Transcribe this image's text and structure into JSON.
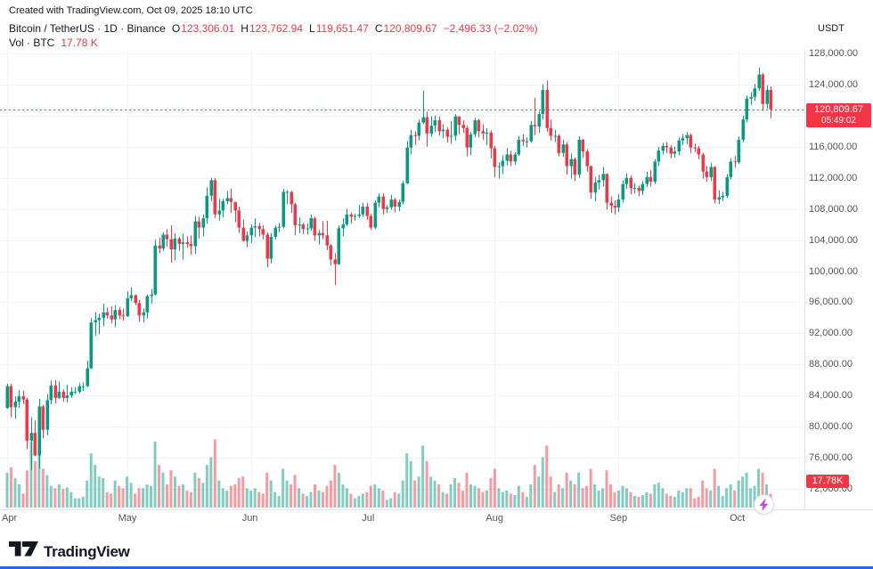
{
  "attribution": "Created with TradingView.com, Oct 09, 2025 18:10 UTC",
  "legend": {
    "title": "Bitcoin / TetherUS · 1D · Binance",
    "o_label": "O",
    "o_value": "123,306.01",
    "h_label": "H",
    "h_value": "123,762.94",
    "l_label": "L",
    "l_value": "119,651.47",
    "c_label": "C",
    "c_value": "120,809.67",
    "change": "−2,496.33 (−2.02%)",
    "currency": "USDT",
    "vol_label": "Vol · BTC",
    "vol_value": "17.78 K"
  },
  "price_line": {
    "value": 120809.67,
    "label": "120,809.67",
    "countdown": "05:49:02"
  },
  "volume_badge": "17.78K",
  "price_axis": {
    "labels": [
      "128,000.00",
      "124,000.00",
      "120,000.00",
      "116,000.00",
      "112,000.00",
      "108,000.00",
      "104,000.00",
      "100,000.00",
      "96,000.00",
      "92,000.00",
      "88,000.00",
      "84,000.00",
      "80,000.00",
      "76,000.00",
      "72,000.00"
    ],
    "values": [
      128000,
      124000,
      120000,
      116000,
      112000,
      108000,
      104000,
      100000,
      96000,
      92000,
      88000,
      84000,
      80000,
      76000,
      72000
    ]
  },
  "time_axis": {
    "labels": [
      "Apr",
      "May",
      "Jun",
      "Jul",
      "Aug",
      "Sep",
      "Oct"
    ],
    "day_index": [
      0,
      30,
      61,
      91,
      122,
      153,
      183
    ]
  },
  "footer": {
    "brand": "TradingView"
  },
  "colors": {
    "up": "#089981",
    "down": "#f23645",
    "grid": "#f0f3fa",
    "axis_line": "#e0e3eb",
    "axis_text": "#50535e",
    "text": "#131722",
    "price_line": "#f23645",
    "badge_bg": "#f23645",
    "bolt": "#bb4fd0",
    "loading_bar": "#2962ff"
  },
  "chart_data": {
    "type": "candlestick+volume",
    "title": "Bitcoin / TetherUS 1D Binance",
    "symbol": "BTC/USDT",
    "exchange": "Binance",
    "interval": "1D",
    "start_date": "2025-04-01",
    "end_date": "2025-10-09",
    "price_scale": 1000,
    "price_unit": "USDT (candle values stored in thousands)",
    "volume_unit": "K BTC",
    "ylim": [
      69400,
      128600
    ],
    "y_tick_step": 4000,
    "grid": true,
    "legend_position": "top-left",
    "last_bar": {
      "open": 123306.01,
      "high": 123762.94,
      "low": 119651.47,
      "close": 120809.67,
      "volume_k": 17.78
    },
    "candles": [
      [
        82.4,
        85.5,
        82.3,
        85.2,
        45
      ],
      [
        85.2,
        85.5,
        81.2,
        82.5,
        52
      ],
      [
        82.5,
        83.9,
        81.0,
        83.2,
        38
      ],
      [
        83.2,
        84.7,
        82.4,
        83.9,
        30
      ],
      [
        83.9,
        84.6,
        82.9,
        83.5,
        18
      ],
      [
        83.5,
        83.7,
        77.1,
        78.2,
        48
      ],
      [
        78.2,
        81.2,
        74.4,
        79.2,
        85
      ],
      [
        79.2,
        80.8,
        76.2,
        76.3,
        60
      ],
      [
        76.3,
        83.6,
        74.6,
        82.6,
        78
      ],
      [
        82.6,
        82.8,
        78.5,
        79.6,
        50
      ],
      [
        79.6,
        84.2,
        78.9,
        83.4,
        42
      ],
      [
        83.4,
        85.9,
        82.9,
        85.3,
        28
      ],
      [
        85.3,
        86.0,
        83.0,
        83.7,
        25
      ],
      [
        83.7,
        85.8,
        83.6,
        84.5,
        30
      ],
      [
        84.5,
        84.8,
        83.2,
        83.7,
        24
      ],
      [
        83.7,
        85.4,
        83.1,
        84.0,
        26
      ],
      [
        84.0,
        85.1,
        83.7,
        84.5,
        20
      ],
      [
        84.5,
        85.1,
        84.2,
        84.5,
        12
      ],
      [
        84.5,
        85.6,
        84.3,
        85.2,
        12
      ],
      [
        85.2,
        85.7,
        84.6,
        85.2,
        14
      ],
      [
        85.2,
        88.5,
        85.1,
        87.5,
        35
      ],
      [
        87.5,
        94.0,
        87.4,
        93.4,
        70
      ],
      [
        93.4,
        94.7,
        91.7,
        93.7,
        55
      ],
      [
        93.7,
        94.5,
        91.9,
        94.0,
        40
      ],
      [
        94.0,
        95.8,
        92.9,
        94.7,
        38
      ],
      [
        94.7,
        95.3,
        93.9,
        94.3,
        20
      ],
      [
        94.3,
        95.5,
        93.3,
        93.8,
        18
      ],
      [
        93.8,
        95.6,
        92.8,
        95.0,
        35
      ],
      [
        95.0,
        95.4,
        93.8,
        94.3,
        28
      ],
      [
        94.3,
        95.2,
        93.6,
        94.2,
        25
      ],
      [
        94.2,
        97.4,
        94.1,
        96.5,
        40
      ],
      [
        96.5,
        97.9,
        96.1,
        96.9,
        32
      ],
      [
        96.9,
        97.0,
        95.6,
        95.9,
        18
      ],
      [
        95.9,
        96.3,
        93.5,
        94.3,
        25
      ],
      [
        94.3,
        95.2,
        93.4,
        94.7,
        25
      ],
      [
        94.7,
        97.0,
        93.9,
        96.8,
        30
      ],
      [
        96.8,
        97.7,
        95.8,
        97.0,
        28
      ],
      [
        97.0,
        104.1,
        96.9,
        103.3,
        85
      ],
      [
        103.3,
        104.3,
        102.3,
        102.9,
        55
      ],
      [
        102.9,
        105.0,
        102.6,
        104.7,
        45
      ],
      [
        104.7,
        105.4,
        103.1,
        104.1,
        30
      ],
      [
        104.1,
        105.9,
        101.1,
        102.8,
        48
      ],
      [
        102.8,
        104.9,
        101.4,
        104.2,
        40
      ],
      [
        104.2,
        104.4,
        102.6,
        103.5,
        28
      ],
      [
        103.5,
        104.8,
        101.5,
        103.7,
        30
      ],
      [
        103.7,
        104.5,
        103.0,
        103.5,
        22
      ],
      [
        103.5,
        104.6,
        102.1,
        103.2,
        20
      ],
      [
        103.2,
        107.1,
        102.2,
        106.4,
        45
      ],
      [
        106.4,
        107.0,
        104.2,
        105.6,
        38
      ],
      [
        105.6,
        107.3,
        104.5,
        106.8,
        32
      ],
      [
        106.8,
        110.8,
        106.1,
        109.7,
        55
      ],
      [
        109.7,
        112.0,
        109.0,
        111.7,
        65
      ],
      [
        111.7,
        112.0,
        106.8,
        107.3,
        88
      ],
      [
        107.3,
        109.3,
        106.5,
        107.8,
        35
      ],
      [
        107.8,
        109.3,
        106.9,
        109.0,
        25
      ],
      [
        109.0,
        110.3,
        108.6,
        109.4,
        22
      ],
      [
        109.4,
        110.6,
        107.5,
        108.9,
        28
      ],
      [
        108.9,
        108.9,
        106.3,
        107.8,
        30
      ],
      [
        107.8,
        108.3,
        104.9,
        105.6,
        38
      ],
      [
        105.6,
        106.6,
        103.8,
        103.9,
        40
      ],
      [
        103.9,
        105.1,
        103.1,
        104.6,
        25
      ],
      [
        104.6,
        106.0,
        103.6,
        105.6,
        22
      ],
      [
        105.6,
        106.8,
        104.4,
        105.8,
        25
      ],
      [
        105.8,
        106.2,
        104.5,
        105.4,
        20
      ],
      [
        105.4,
        105.9,
        104.1,
        104.7,
        18
      ],
      [
        104.7,
        105.0,
        100.5,
        101.6,
        45
      ],
      [
        101.6,
        104.9,
        101.0,
        104.4,
        35
      ],
      [
        104.4,
        105.9,
        104.1,
        105.6,
        20
      ],
      [
        105.6,
        106.2,
        105.0,
        105.7,
        15
      ],
      [
        105.7,
        110.6,
        105.5,
        110.2,
        50
      ],
      [
        110.2,
        110.4,
        108.6,
        110.2,
        35
      ],
      [
        110.2,
        110.3,
        107.5,
        108.6,
        30
      ],
      [
        108.6,
        108.8,
        104.6,
        105.9,
        42
      ],
      [
        105.9,
        106.9,
        104.9,
        106.0,
        25
      ],
      [
        106.0,
        106.2,
        104.8,
        105.4,
        18
      ],
      [
        105.4,
        106.1,
        104.7,
        105.5,
        15
      ],
      [
        105.5,
        107.3,
        105.2,
        106.8,
        20
      ],
      [
        106.8,
        107.0,
        103.9,
        104.6,
        30
      ],
      [
        104.6,
        105.3,
        103.4,
        104.9,
        22
      ],
      [
        104.9,
        106.4,
        104.1,
        104.6,
        20
      ],
      [
        104.6,
        106.5,
        102.7,
        103.3,
        28
      ],
      [
        103.3,
        103.5,
        100.7,
        101.5,
        35
      ],
      [
        101.5,
        102.3,
        98.2,
        100.9,
        55
      ],
      [
        100.9,
        105.9,
        100.8,
        105.5,
        45
      ],
      [
        105.5,
        106.8,
        104.5,
        106.0,
        30
      ],
      [
        106.0,
        108.0,
        105.8,
        107.3,
        25
      ],
      [
        107.3,
        107.5,
        106.1,
        107.0,
        18
      ],
      [
        107.0,
        107.4,
        106.5,
        107.1,
        12
      ],
      [
        107.1,
        108.5,
        106.8,
        107.3,
        15
      ],
      [
        107.3,
        108.8,
        107.0,
        108.3,
        18
      ],
      [
        108.3,
        108.8,
        106.6,
        107.1,
        20
      ],
      [
        107.1,
        107.4,
        105.3,
        105.6,
        28
      ],
      [
        105.6,
        109.1,
        105.4,
        108.8,
        30
      ],
      [
        108.8,
        110.0,
        108.2,
        109.6,
        25
      ],
      [
        109.6,
        110.0,
        107.3,
        108.0,
        22
      ],
      [
        108.0,
        108.5,
        107.5,
        108.2,
        10
      ],
      [
        108.2,
        109.8,
        107.9,
        109.2,
        12
      ],
      [
        109.2,
        109.4,
        107.6,
        108.3,
        20
      ],
      [
        108.3,
        109.2,
        107.7,
        108.9,
        18
      ],
      [
        108.9,
        111.6,
        108.6,
        111.3,
        35
      ],
      [
        111.3,
        116.7,
        111.2,
        115.9,
        70
      ],
      [
        115.9,
        118.2,
        115.0,
        117.5,
        60
      ],
      [
        117.5,
        118.0,
        116.2,
        117.4,
        35
      ],
      [
        117.4,
        119.5,
        116.8,
        119.1,
        40
      ],
      [
        119.1,
        123.2,
        118.9,
        119.8,
        80
      ],
      [
        119.8,
        120.5,
        116.0,
        117.7,
        60
      ],
      [
        117.7,
        119.9,
        117.3,
        118.7,
        40
      ],
      [
        118.7,
        120.0,
        117.9,
        119.4,
        35
      ],
      [
        119.4,
        119.9,
        117.4,
        118.0,
        30
      ],
      [
        118.0,
        118.9,
        117.1,
        118.2,
        20
      ],
      [
        118.2,
        118.5,
        116.5,
        117.3,
        18
      ],
      [
        117.3,
        119.3,
        116.4,
        117.4,
        30
      ],
      [
        117.4,
        120.2,
        116.8,
        119.9,
        38
      ],
      [
        119.9,
        119.9,
        117.6,
        118.8,
        32
      ],
      [
        118.8,
        119.4,
        117.8,
        118.4,
        22
      ],
      [
        118.4,
        118.7,
        114.8,
        115.9,
        45
      ],
      [
        115.9,
        117.9,
        114.9,
        117.6,
        30
      ],
      [
        117.6,
        119.7,
        117.2,
        119.4,
        28
      ],
      [
        119.4,
        119.6,
        117.2,
        118.0,
        25
      ],
      [
        118.0,
        118.9,
        116.9,
        117.7,
        20
      ],
      [
        117.7,
        118.4,
        116.2,
        117.8,
        22
      ],
      [
        117.8,
        118.1,
        114.5,
        115.8,
        38
      ],
      [
        115.8,
        116.1,
        112.1,
        113.4,
        50
      ],
      [
        113.4,
        114.0,
        111.9,
        113.5,
        25
      ],
      [
        113.5,
        114.9,
        112.5,
        114.2,
        20
      ],
      [
        114.2,
        115.8,
        113.6,
        115.0,
        22
      ],
      [
        115.0,
        115.5,
        113.5,
        114.1,
        18
      ],
      [
        114.1,
        115.3,
        113.7,
        115.0,
        16
      ],
      [
        115.0,
        117.4,
        114.8,
        116.9,
        28
      ],
      [
        116.9,
        117.6,
        116.1,
        116.7,
        20
      ],
      [
        116.7,
        117.2,
        115.9,
        116.7,
        14
      ],
      [
        116.7,
        119.3,
        116.5,
        118.8,
        30
      ],
      [
        118.8,
        122.3,
        117.5,
        118.6,
        55
      ],
      [
        118.6,
        120.6,
        117.8,
        120.2,
        40
      ],
      [
        120.2,
        124.0,
        119.5,
        123.3,
        65
      ],
      [
        123.3,
        124.5,
        117.9,
        118.4,
        80
      ],
      [
        118.4,
        119.5,
        116.8,
        117.4,
        40
      ],
      [
        117.4,
        118.2,
        116.6,
        117.4,
        20
      ],
      [
        117.4,
        117.6,
        114.8,
        115.2,
        30
      ],
      [
        115.2,
        116.9,
        114.7,
        116.3,
        25
      ],
      [
        116.3,
        116.6,
        112.4,
        113.5,
        45
      ],
      [
        113.5,
        115.1,
        111.9,
        114.4,
        35
      ],
      [
        114.4,
        114.6,
        111.6,
        112.4,
        30
      ],
      [
        112.4,
        117.3,
        112.0,
        116.9,
        45
      ],
      [
        116.9,
        117.0,
        114.6,
        115.4,
        25
      ],
      [
        115.4,
        115.7,
        112.8,
        113.5,
        28
      ],
      [
        113.5,
        113.6,
        109.3,
        110.1,
        50
      ],
      [
        110.1,
        112.1,
        109.0,
        111.4,
        30
      ],
      [
        111.4,
        112.4,
        110.5,
        111.7,
        22
      ],
      [
        111.7,
        113.4,
        110.9,
        112.5,
        25
      ],
      [
        112.5,
        112.6,
        107.9,
        108.8,
        48
      ],
      [
        108.8,
        109.6,
        107.5,
        108.4,
        30
      ],
      [
        108.4,
        109.1,
        107.3,
        108.2,
        20
      ],
      [
        108.2,
        109.9,
        107.6,
        109.2,
        22
      ],
      [
        109.2,
        111.7,
        108.8,
        111.2,
        28
      ],
      [
        111.2,
        112.6,
        110.6,
        112.0,
        25
      ],
      [
        112.0,
        112.3,
        109.9,
        110.7,
        20
      ],
      [
        110.7,
        111.3,
        110.0,
        110.7,
        15
      ],
      [
        110.7,
        111.0,
        109.6,
        110.3,
        14
      ],
      [
        110.3,
        111.6,
        109.8,
        111.2,
        16
      ],
      [
        111.2,
        112.8,
        110.8,
        112.1,
        20
      ],
      [
        112.1,
        113.0,
        110.9,
        111.5,
        18
      ],
      [
        111.5,
        114.4,
        111.2,
        114.1,
        30
      ],
      [
        114.1,
        116.0,
        113.5,
        115.5,
        32
      ],
      [
        115.5,
        116.5,
        115.0,
        116.1,
        25
      ],
      [
        116.1,
        116.6,
        115.2,
        115.9,
        18
      ],
      [
        115.9,
        116.2,
        114.5,
        115.1,
        15
      ],
      [
        115.1,
        116.0,
        114.6,
        115.4,
        14
      ],
      [
        115.4,
        117.2,
        114.9,
        116.8,
        22
      ],
      [
        116.8,
        117.6,
        116.2,
        117.1,
        20
      ],
      [
        117.1,
        117.9,
        116.3,
        117.5,
        25
      ],
      [
        117.5,
        117.7,
        115.2,
        115.9,
        25
      ],
      [
        115.9,
        116.4,
        115.3,
        115.8,
        12
      ],
      [
        115.8,
        116.1,
        114.4,
        115.0,
        14
      ],
      [
        115.0,
        115.2,
        111.9,
        112.8,
        35
      ],
      [
        112.8,
        113.5,
        111.5,
        112.1,
        25
      ],
      [
        112.1,
        113.9,
        111.6,
        113.4,
        22
      ],
      [
        113.4,
        113.5,
        108.7,
        109.2,
        50
      ],
      [
        109.2,
        110.4,
        108.6,
        109.5,
        28
      ],
      [
        109.5,
        110.2,
        109.0,
        109.7,
        15
      ],
      [
        109.7,
        112.5,
        109.4,
        112.1,
        25
      ],
      [
        112.1,
        114.5,
        111.8,
        114.1,
        30
      ],
      [
        114.1,
        114.8,
        113.3,
        114.0,
        22
      ],
      [
        114.0,
        117.3,
        113.8,
        116.9,
        35
      ],
      [
        116.9,
        120.0,
        116.6,
        119.5,
        40
      ],
      [
        119.5,
        122.6,
        119.2,
        122.2,
        45
      ],
      [
        122.2,
        123.0,
        121.4,
        122.4,
        25
      ],
      [
        122.4,
        124.1,
        121.9,
        123.5,
        28
      ],
      [
        123.5,
        126.2,
        123.2,
        125.3,
        50
      ],
      [
        125.3,
        125.5,
        120.6,
        121.5,
        45
      ],
      [
        121.5,
        123.9,
        120.9,
        123.3,
        30
      ],
      [
        123.30601,
        123.76294,
        119.65147,
        120.80967,
        17.78
      ]
    ]
  }
}
